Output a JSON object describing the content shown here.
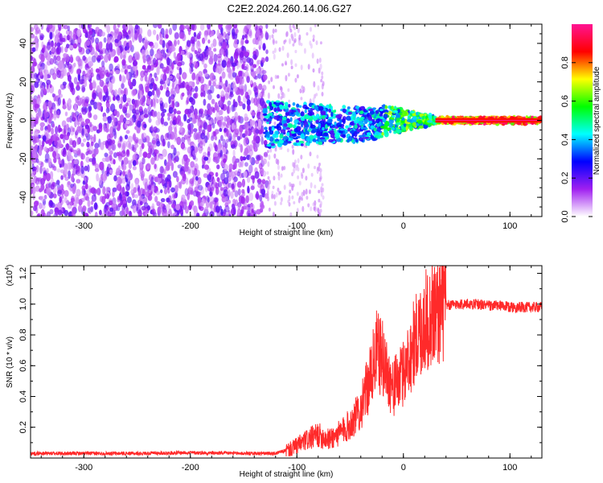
{
  "title": "C2E2.2024.260.14.06.G27",
  "chart_data": [
    {
      "type": "heatmap",
      "name": "spectrogram",
      "xlabel": "Height of straight line (km)",
      "ylabel": "Frequency (Hz)",
      "xlim": [
        -350,
        130
      ],
      "ylim": [
        -50,
        50
      ],
      "xticks": [
        -300,
        -200,
        -100,
        0,
        100
      ],
      "yticks": [
        -40,
        -20,
        0,
        20,
        40
      ],
      "colorbar": {
        "label": "Normalized spectral amplitude",
        "range": [
          0,
          1
        ],
        "ticks": [
          "0.0",
          "0.2",
          "0.4",
          "0.6",
          "0.8"
        ],
        "tick_values": [
          0,
          0.2,
          0.4,
          0.6,
          0.8
        ],
        "colors": [
          "#ffffff",
          "#a020f0",
          "#0000ff",
          "#00ffff",
          "#00ff00",
          "#ffff00",
          "#ff0000",
          "#ff1493"
        ]
      },
      "features": {
        "noise_region_x": [
          -350,
          -128
        ],
        "sparse_region_x": [
          -128,
          -75
        ],
        "signal_band_x": [
          -130,
          130
        ],
        "signal_freq_center": 0
      }
    },
    {
      "type": "line",
      "name": "snr",
      "xlabel": "Height of straight line (km)",
      "ylabel": "SNR (10 * v/v)",
      "scale_label": "(x10",
      "scale_exp": "4",
      "scale_suffix": ")",
      "xlim": [
        -350,
        130
      ],
      "ylim": [
        0,
        1.25
      ],
      "xticks": [
        -300,
        -200,
        -100,
        0,
        100
      ],
      "yticks": [
        "0.2",
        "0.4",
        "0.6",
        "0.8",
        "1.0",
        "1.2"
      ],
      "ytick_values": [
        0.2,
        0.4,
        0.6,
        0.8,
        1.0,
        1.2
      ],
      "color": "#ff2a2a",
      "x": [
        -350,
        -300,
        -250,
        -200,
        -150,
        -120,
        -105,
        -90,
        -80,
        -70,
        -60,
        -50,
        -40,
        -30,
        -25,
        -20,
        -10,
        0,
        10,
        20,
        30,
        40,
        50,
        60,
        70,
        80,
        90,
        100,
        110,
        120,
        130
      ],
      "y": [
        0.03,
        0.03,
        0.03,
        0.035,
        0.03,
        0.03,
        0.06,
        0.12,
        0.15,
        0.12,
        0.16,
        0.22,
        0.32,
        0.55,
        0.7,
        0.65,
        0.45,
        0.55,
        0.75,
        0.88,
        0.95,
        0.99,
        1.0,
        1.0,
        1.0,
        0.99,
        0.99,
        0.98,
        0.98,
        0.98,
        0.98
      ]
    }
  ]
}
